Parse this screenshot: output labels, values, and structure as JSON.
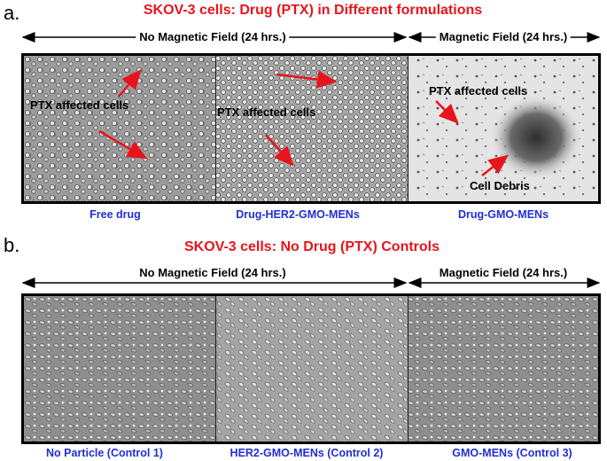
{
  "panel_a": {
    "letter": "a.",
    "title": "SKOV-3 cells: Drug (PTX) in Different formulations",
    "no_field_label": "No Magnetic Field (24 hrs.)",
    "field_label": "Magnetic Field (24 hrs.)",
    "annotations": {
      "img1": "PTX affected cells",
      "img2": "PTX affected cells",
      "img3_cells": "PTX affected cells",
      "img3_debris": "Cell Debris"
    },
    "captions": [
      "Free drug",
      "Drug-HER2-GMO-MENs",
      "Drug-GMO-MENs"
    ]
  },
  "panel_b": {
    "letter": "b.",
    "title": "SKOV-3 cells: No Drug (PTX) Controls",
    "no_field_label": "No Magnetic Field (24 hrs.)",
    "field_label": "Magnetic Field (24 hrs.)",
    "captions": [
      "No Particle (Control 1)",
      "HER2-GMO-MENs (Control 2)",
      "GMO-MENs (Control 3)"
    ]
  },
  "colors": {
    "title": "#e8141b",
    "caption": "#1f2fd6",
    "arrow": "#e8141b"
  }
}
